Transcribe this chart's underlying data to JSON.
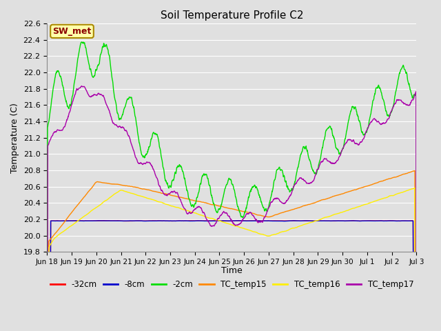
{
  "title": "Soil Temperature Profile C2",
  "xlabel": "Time",
  "ylabel": "Temperature (C)",
  "ylim": [
    19.8,
    22.6
  ],
  "annotation": "SW_met",
  "legend_labels": [
    "-32cm",
    "-8cm",
    "-2cm",
    "TC_temp15",
    "TC_temp16",
    "TC_temp17"
  ],
  "legend_colors": [
    "#ff0000",
    "#0000cc",
    "#00dd00",
    "#ff8800",
    "#ffee00",
    "#aa00aa"
  ],
  "background_color": "#e0e0e0",
  "grid_color": "#ffffff",
  "xtick_labels": [
    "Jun 18",
    "Jun 19",
    "Jun 20",
    "Jun 21",
    "Jun 22",
    "Jun 23",
    "Jun 24",
    "Jun 25",
    "Jun 26",
    "Jun 27",
    "Jun 28",
    "Jun 29",
    "Jun 30",
    "Jul 1",
    "Jul 2",
    "Jul 3"
  ],
  "num_points": 1500
}
